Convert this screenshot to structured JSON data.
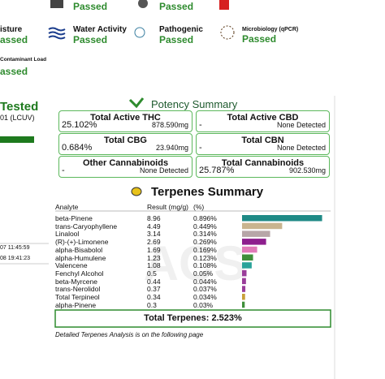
{
  "tests": [
    {
      "name": null,
      "status": "Passed"
    },
    {
      "name": null,
      "status": "Passed"
    },
    {
      "name": "isture",
      "status": "assed"
    },
    {
      "name": "Water Activity",
      "status": "Passed"
    },
    {
      "name": "Pathogenic",
      "status": "Passed"
    },
    {
      "name": "Microbiology (qPCR)",
      "status": "Passed"
    },
    {
      "name": "Contaminant Load",
      "status": "assed"
    }
  ],
  "sample": {
    "status": "Tested",
    "id": "01 (LCUV)",
    "time1": "07 11:45:59",
    "time2": "08 19:41:23"
  },
  "potency": {
    "title": "Potency Summary",
    "boxes": [
      {
        "label": "Total Active THC",
        "percent": "25.102%",
        "mg": "878.590mg"
      },
      {
        "label": "Total Active CBD",
        "percent": "-",
        "mg": "None Detected"
      },
      {
        "label": "Total CBG",
        "percent": "0.684%",
        "mg": "23.940mg"
      },
      {
        "label": "Total CBN",
        "percent": "-",
        "mg": "None Detected"
      },
      {
        "label": "Other Cannabinoids",
        "percent": "-",
        "mg": "None Detected"
      },
      {
        "label": "Total Cannabinoids",
        "percent": "25.787%",
        "mg": "902.530mg"
      }
    ]
  },
  "terpenes": {
    "title": "Terpenes Summary",
    "headers": [
      "Analyte",
      "Result (mg/g)",
      "(%)"
    ],
    "rows": [
      {
        "name": "beta-Pinene",
        "result": "8.96",
        "percent": 0.896,
        "percent_label": "0.896%",
        "color": "#1f8a86"
      },
      {
        "name": "trans-Caryophyllene",
        "result": "4.49",
        "percent": 0.449,
        "percent_label": "0.449%",
        "color": "#c9b48f"
      },
      {
        "name": "Linalool",
        "result": "3.14",
        "percent": 0.314,
        "percent_label": "0.314%",
        "color": "#b7a6a8"
      },
      {
        "name": "(R)-(+)-Limonene",
        "result": "2.69",
        "percent": 0.269,
        "percent_label": "0.269%",
        "color": "#8e1f8e"
      },
      {
        "name": "alpha-Bisabolol",
        "result": "1.69",
        "percent": 0.169,
        "percent_label": "0.169%",
        "color": "#e07ab8"
      },
      {
        "name": "alpha-Humulene",
        "result": "1.23",
        "percent": 0.123,
        "percent_label": "0.123%",
        "color": "#3f8f3a"
      },
      {
        "name": "Valencene",
        "result": "1.08",
        "percent": 0.108,
        "percent_label": "0.108%",
        "color": "#2aa39a"
      },
      {
        "name": "Fenchyl Alcohol",
        "result": "0.5",
        "percent": 0.05,
        "percent_label": "0.05%",
        "color": "#9a3d9a"
      },
      {
        "name": "beta-Myrcene",
        "result": "0.44",
        "percent": 0.044,
        "percent_label": "0.044%",
        "color": "#9a3d9a"
      },
      {
        "name": "trans-Nerolidol",
        "result": "0.37",
        "percent": 0.037,
        "percent_label": "0.037%",
        "color": "#9a3d9a"
      },
      {
        "name": "Total Terpineol",
        "result": "0.34",
        "percent": 0.034,
        "percent_label": "0.034%",
        "color": "#c8a038"
      },
      {
        "name": "alpha-Pinene",
        "result": "0.3",
        "percent": 0.03,
        "percent_label": "0.03%",
        "color": "#3f8f3a"
      }
    ],
    "total": "Total Terpenes: 2.523%",
    "note": "Detailed Terpenes Analysis is on the following page"
  }
}
